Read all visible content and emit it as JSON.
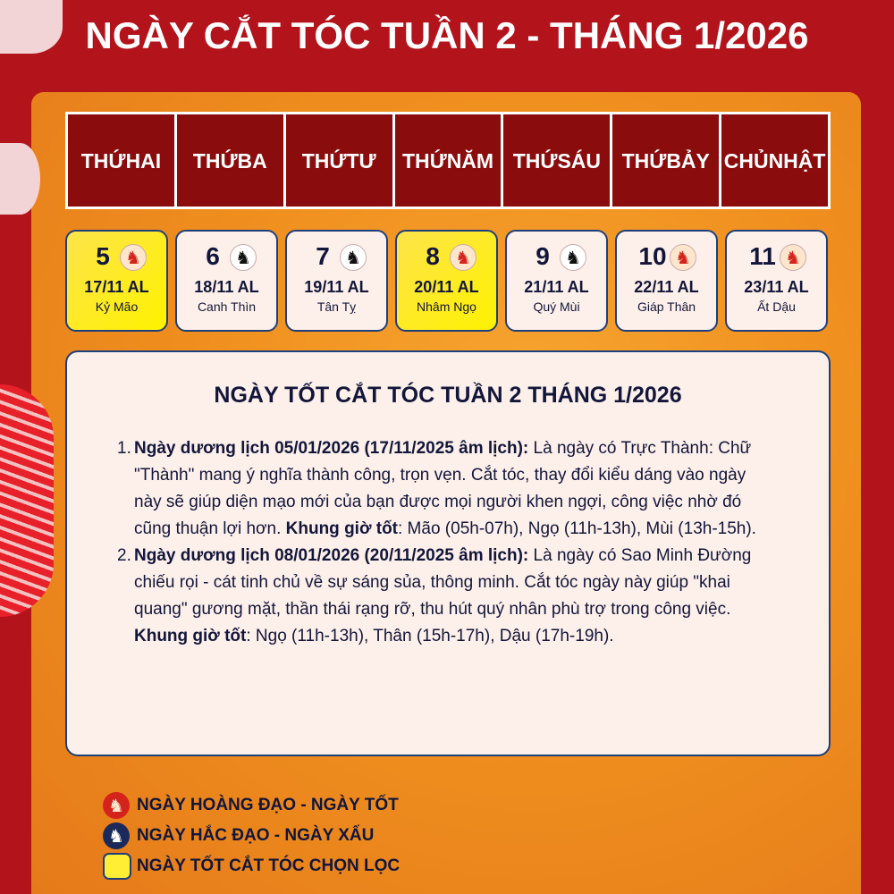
{
  "title": "NGÀY CẮT TÓC TUẦN 2 - THÁNG 1/2026",
  "weekdays": [
    [
      "THỨ",
      "HAI"
    ],
    [
      "THỨ",
      "BA"
    ],
    [
      "THỨ",
      "TƯ"
    ],
    [
      "THỨ",
      "NĂM"
    ],
    [
      "THỨ",
      "SÁU"
    ],
    [
      "THỨ",
      "BẢY"
    ],
    [
      "CHỦ",
      "NHẬT"
    ]
  ],
  "days": [
    {
      "day": "5",
      "lunar": "17/11 AL",
      "canchi": "Kỷ Mão",
      "type": "good",
      "selected": true
    },
    {
      "day": "6",
      "lunar": "18/11 AL",
      "canchi": "Canh Thìn",
      "type": "bad",
      "selected": false
    },
    {
      "day": "7",
      "lunar": "19/11 AL",
      "canchi": "Tân Tỵ",
      "type": "bad",
      "selected": false
    },
    {
      "day": "8",
      "lunar": "20/11 AL",
      "canchi": "Nhâm Ngọ",
      "type": "good",
      "selected": true
    },
    {
      "day": "9",
      "lunar": "21/11 AL",
      "canchi": "Quý Mùi",
      "type": "bad",
      "selected": false
    },
    {
      "day": "10",
      "lunar": "22/11 AL",
      "canchi": "Giáp Thân",
      "type": "good",
      "selected": false
    },
    {
      "day": "11",
      "lunar": "23/11 AL",
      "canchi": "Ất Dậu",
      "type": "good",
      "selected": false
    }
  ],
  "content": {
    "title": "NGÀY TỐT CẮT TÓC TUẦN 2 THÁNG 1/2026",
    "items": [
      {
        "num": "1.",
        "head": "Ngày dương lịch 05/01/2026 (17/11/2025 âm lịch):",
        "body": " Là ngày có Trực Thành: Chữ \"Thành\" mang ý nghĩa thành công, trọn vẹn. Cắt tóc, thay đổi kiểu dáng vào ngày này sẽ giúp diện mạo mới của bạn được mọi người khen ngợi, công việc nhờ đó cũng thuận lợi hơn. ",
        "hours_label": "Khung giờ tốt",
        "hours": ": Mão (05h-07h), Ngọ (11h-13h), Mùi (13h-15h)."
      },
      {
        "num": "2.",
        "head": "Ngày dương lịch 08/01/2026 (20/11/2025 âm lịch):",
        "body": " Là ngày có Sao Minh Đường chiếu rọi - cát tinh chủ về sự sáng sủa, thông minh. Cắt tóc ngày này giúp \"khai quang\" gương mặt, thần thái rạng rỡ, thu hút quý nhân phù trợ trong công việc. ",
        "hours_label": "Khung giờ tốt",
        "hours": ": Ngọ (11h-13h), Thân (15h-17h), Dậu (17h-19h)."
      }
    ]
  },
  "legend": {
    "good": "NGÀY HOÀNG ĐẠO - NGÀY TỐT",
    "bad": "NGÀY HẮC ĐẠO - NGÀY XẤU",
    "selected": "NGÀY TỐT CẮT TÓC CHỌN LỌC"
  },
  "icons": {
    "day_marker": "horse-head-icon"
  },
  "colors": {
    "good": "#d4231b",
    "bad": "#111111",
    "selected": "#fff200",
    "header": "#8b0c0c"
  }
}
